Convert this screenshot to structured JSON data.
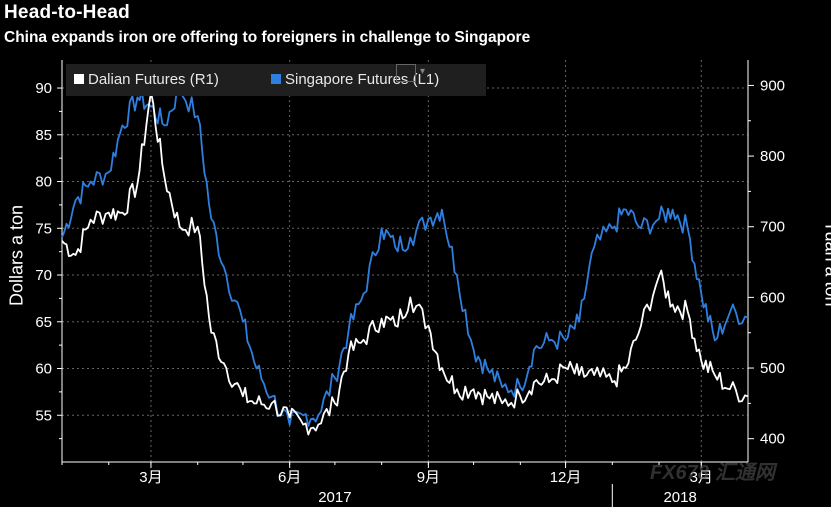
{
  "title": "Head-to-Head",
  "subtitle": "China expands iron ore offering to foreigners in challenge to Singapore",
  "watermark": {
    "brand": "FX678",
    "cn": "汇通网"
  },
  "legend_widget_icon": "chart-settings-icon",
  "colors": {
    "dalian": "#ffffff",
    "singapore": "#2e7fe0",
    "background": "#000000",
    "grid": "#666666"
  },
  "chart_data": {
    "type": "line",
    "title": "Head-to-Head",
    "subtitle": "China expands iron ore offering to foreigners in challenge to Singapore",
    "ylabel_left": "Dollars a ton",
    "ylabel_right": "Yuan a ton",
    "left_axis": {
      "ticks": [
        55,
        60,
        65,
        70,
        75,
        80,
        85,
        90
      ],
      "range": [
        50,
        93
      ]
    },
    "right_axis": {
      "ticks": [
        400,
        500,
        600,
        700,
        800,
        900
      ],
      "range": [
        367,
        936
      ]
    },
    "x_ticks": [
      "3月",
      "6月",
      "9月",
      "12月",
      "3月"
    ],
    "x_years": [
      "2017",
      "2018"
    ],
    "x_range": [
      "2017-01",
      "2018-04"
    ],
    "grid": true,
    "legend": [
      {
        "label": "Dalian Futures (R1)",
        "axis": "right"
      },
      {
        "label": "Singapore Futures (L1)",
        "axis": "left"
      }
    ],
    "series": [
      {
        "name": "Singapore Futures (L1)",
        "axis": "left",
        "x": [
          "2017-01-01",
          "2017-01-10",
          "2017-01-20",
          "2017-02-01",
          "2017-02-10",
          "2017-02-20",
          "2017-03-01",
          "2017-03-10",
          "2017-03-20",
          "2017-04-01",
          "2017-04-10",
          "2017-04-20",
          "2017-05-01",
          "2017-05-10",
          "2017-05-20",
          "2017-06-01",
          "2017-06-10",
          "2017-06-20",
          "2017-07-01",
          "2017-07-10",
          "2017-07-20",
          "2017-08-01",
          "2017-08-10",
          "2017-08-20",
          "2017-09-01",
          "2017-09-10",
          "2017-09-20",
          "2017-10-01",
          "2017-10-10",
          "2017-10-20",
          "2017-11-01",
          "2017-11-10",
          "2017-11-20",
          "2017-12-01",
          "2017-12-10",
          "2017-12-20",
          "2018-01-01",
          "2018-01-10",
          "2018-01-20",
          "2018-02-01",
          "2018-02-10",
          "2018-02-20",
          "2018-03-01",
          "2018-03-10",
          "2018-03-20",
          "2018-04-01"
        ],
        "values": [
          74,
          78,
          80,
          81,
          86,
          89,
          88,
          86,
          90,
          87,
          76,
          70,
          65,
          60,
          57,
          54,
          55,
          55,
          59,
          64,
          68,
          75,
          73,
          74,
          76,
          77,
          70,
          62,
          60,
          58,
          58,
          62,
          63,
          63,
          65,
          73,
          75,
          77,
          75,
          76,
          77,
          75,
          68,
          63,
          66,
          65.5
        ]
      },
      {
        "name": "Dalian Futures (R1)",
        "axis": "right",
        "x": [
          "2017-01-01",
          "2017-01-10",
          "2017-01-20",
          "2017-02-01",
          "2017-02-10",
          "2017-02-20",
          "2017-03-01",
          "2017-03-10",
          "2017-03-20",
          "2017-04-01",
          "2017-04-10",
          "2017-04-20",
          "2017-05-01",
          "2017-05-10",
          "2017-05-20",
          "2017-06-01",
          "2017-06-10",
          "2017-06-20",
          "2017-07-01",
          "2017-07-10",
          "2017-07-20",
          "2017-08-01",
          "2017-08-10",
          "2017-08-20",
          "2017-09-01",
          "2017-09-10",
          "2017-09-20",
          "2017-10-01",
          "2017-10-10",
          "2017-10-20",
          "2017-11-01",
          "2017-11-10",
          "2017-11-20",
          "2017-12-01",
          "2017-12-10",
          "2017-12-20",
          "2018-01-01",
          "2018-01-10",
          "2018-01-20",
          "2018-02-01",
          "2018-02-10",
          "2018-02-20",
          "2018-03-01",
          "2018-03-10",
          "2018-03-20",
          "2018-04-01"
        ],
        "values": [
          680,
          660,
          710,
          720,
          720,
          760,
          890,
          770,
          700,
          700,
          550,
          500,
          460,
          450,
          450,
          430,
          420,
          420,
          450,
          520,
          540,
          570,
          560,
          600,
          560,
          500,
          470,
          470,
          460,
          450,
          460,
          480,
          480,
          500,
          490,
          490,
          480,
          500,
          560,
          630,
          590,
          580,
          510,
          490,
          470,
          460
        ]
      }
    ]
  }
}
